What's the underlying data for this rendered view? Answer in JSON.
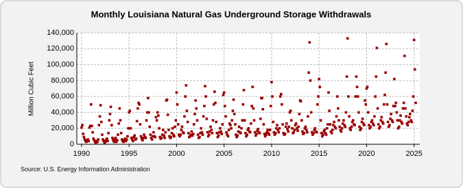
{
  "chart_data": {
    "type": "scatter",
    "title": "Monthly Louisiana Natural  Gas Underground Storage Withdrawals",
    "y_label": "Million Cubic Feet",
    "source": "Source: U.S. Energy Information Administration",
    "color": "#990000",
    "grid": true,
    "xlim": [
      1989.5,
      2025.6
    ],
    "ylim": [
      0,
      140000
    ],
    "xticks": [
      1990,
      1995,
      2000,
      2005,
      2010,
      2015,
      2020,
      2025
    ],
    "yticks": [
      0,
      {
        "value": 20000,
        "label": "20,000"
      },
      {
        "value": 40000,
        "label": "40,000"
      },
      {
        "value": 60000,
        "label": "60,000"
      },
      {
        "value": 80000,
        "label": "80,000"
      },
      {
        "value": 100000,
        "label": "100,000"
      },
      {
        "value": 120000,
        "label": "120,000"
      },
      {
        "value": 140000,
        "label": "140,000"
      }
    ],
    "x": [
      1990,
      1990.08,
      1990.17,
      1990.25,
      1990.33,
      1990.42,
      1990.5,
      1990.58,
      1990.67,
      1990.75,
      1990.83,
      1990.92,
      1991,
      1991.08,
      1991.17,
      1991.25,
      1991.33,
      1991.42,
      1991.5,
      1991.58,
      1991.67,
      1991.75,
      1991.83,
      1991.92,
      1992,
      1992.08,
      1992.17,
      1992.25,
      1992.33,
      1992.42,
      1992.5,
      1992.58,
      1992.67,
      1992.75,
      1992.83,
      1992.92,
      1993,
      1993.08,
      1993.17,
      1993.25,
      1993.33,
      1993.42,
      1993.5,
      1993.58,
      1993.67,
      1993.75,
      1993.83,
      1993.92,
      1994,
      1994.08,
      1994.17,
      1994.25,
      1994.33,
      1994.42,
      1994.5,
      1994.58,
      1994.67,
      1994.75,
      1994.83,
      1994.92,
      1995,
      1995.08,
      1995.17,
      1995.25,
      1995.33,
      1995.42,
      1995.5,
      1995.58,
      1995.67,
      1995.75,
      1995.83,
      1995.92,
      1996,
      1996.08,
      1996.17,
      1996.25,
      1996.33,
      1996.42,
      1996.5,
      1996.58,
      1996.67,
      1996.75,
      1996.83,
      1996.92,
      1997,
      1997.08,
      1997.17,
      1997.25,
      1997.33,
      1997.42,
      1997.5,
      1997.58,
      1997.67,
      1997.75,
      1997.83,
      1997.92,
      1998,
      1998.08,
      1998.17,
      1998.25,
      1998.33,
      1998.42,
      1998.5,
      1998.58,
      1998.67,
      1998.75,
      1998.83,
      1998.92,
      1999,
      1999.08,
      1999.17,
      1999.25,
      1999.33,
      1999.42,
      1999.5,
      1999.58,
      1999.67,
      1999.75,
      1999.83,
      1999.92,
      2000,
      2000.08,
      2000.17,
      2000.25,
      2000.33,
      2000.42,
      2000.5,
      2000.58,
      2000.67,
      2000.75,
      2000.83,
      2000.92,
      2001,
      2001.08,
      2001.17,
      2001.25,
      2001.33,
      2001.42,
      2001.5,
      2001.58,
      2001.67,
      2001.75,
      2001.83,
      2001.92,
      2002,
      2002.08,
      2002.17,
      2002.25,
      2002.33,
      2002.42,
      2002.5,
      2002.58,
      2002.67,
      2002.75,
      2002.83,
      2002.92,
      2003,
      2003.08,
      2003.17,
      2003.25,
      2003.33,
      2003.42,
      2003.5,
      2003.58,
      2003.67,
      2003.75,
      2003.83,
      2003.92,
      2004,
      2004.08,
      2004.17,
      2004.25,
      2004.33,
      2004.42,
      2004.5,
      2004.58,
      2004.67,
      2004.75,
      2004.83,
      2004.92,
      2005,
      2005.08,
      2005.17,
      2005.25,
      2005.33,
      2005.42,
      2005.5,
      2005.58,
      2005.67,
      2005.75,
      2005.83,
      2005.92,
      2006,
      2006.08,
      2006.17,
      2006.25,
      2006.33,
      2006.42,
      2006.5,
      2006.58,
      2006.67,
      2006.75,
      2006.83,
      2006.92,
      2007,
      2007.08,
      2007.17,
      2007.25,
      2007.33,
      2007.42,
      2007.5,
      2007.58,
      2007.67,
      2007.75,
      2007.83,
      2007.92,
      2008,
      2008.08,
      2008.17,
      2008.25,
      2008.33,
      2008.42,
      2008.5,
      2008.58,
      2008.67,
      2008.75,
      2008.83,
      2008.92,
      2009,
      2009.08,
      2009.17,
      2009.25,
      2009.33,
      2009.42,
      2009.5,
      2009.58,
      2009.67,
      2009.75,
      2009.83,
      2009.92,
      2010,
      2010.08,
      2010.17,
      2010.25,
      2010.33,
      2010.42,
      2010.5,
      2010.58,
      2010.67,
      2010.75,
      2010.83,
      2010.92,
      2011,
      2011.08,
      2011.17,
      2011.25,
      2011.33,
      2011.42,
      2011.5,
      2011.58,
      2011.67,
      2011.75,
      2011.83,
      2011.92,
      2012,
      2012.08,
      2012.17,
      2012.25,
      2012.33,
      2012.42,
      2012.5,
      2012.58,
      2012.67,
      2012.75,
      2012.83,
      2012.92,
      2013,
      2013.08,
      2013.17,
      2013.25,
      2013.33,
      2013.42,
      2013.5,
      2013.58,
      2013.67,
      2013.75,
      2013.83,
      2013.92,
      2014,
      2014.08,
      2014.17,
      2014.25,
      2014.33,
      2014.42,
      2014.5,
      2014.58,
      2014.67,
      2014.75,
      2014.83,
      2014.92,
      2015,
      2015.08,
      2015.17,
      2015.25,
      2015.33,
      2015.42,
      2015.5,
      2015.58,
      2015.67,
      2015.75,
      2015.83,
      2015.92,
      2016,
      2016.08,
      2016.17,
      2016.25,
      2016.33,
      2016.42,
      2016.5,
      2016.58,
      2016.67,
      2016.75,
      2016.83,
      2016.92,
      2017,
      2017.08,
      2017.17,
      2017.25,
      2017.33,
      2017.42,
      2017.5,
      2017.58,
      2017.67,
      2017.75,
      2017.83,
      2017.92,
      2018,
      2018.08,
      2018.17,
      2018.25,
      2018.33,
      2018.42,
      2018.5,
      2018.58,
      2018.67,
      2018.75,
      2018.83,
      2018.92,
      2019,
      2019.08,
      2019.17,
      2019.25,
      2019.33,
      2019.42,
      2019.5,
      2019.58,
      2019.67,
      2019.75,
      2019.83,
      2019.92,
      2020,
      2020.08,
      2020.17,
      2020.25,
      2020.33,
      2020.42,
      2020.5,
      2020.58,
      2020.67,
      2020.75,
      2020.83,
      2020.92,
      2021,
      2021.08,
      2021.17,
      2021.25,
      2021.33,
      2021.42,
      2021.5,
      2021.58,
      2021.67,
      2021.75,
      2021.83,
      2021.92,
      2022,
      2022.08,
      2022.17,
      2022.25,
      2022.33,
      2022.42,
      2022.5,
      2022.58,
      2022.67,
      2022.75,
      2022.83,
      2022.92,
      2023,
      2023.08,
      2023.17,
      2023.25,
      2023.33,
      2023.42,
      2023.5,
      2023.58,
      2023.67,
      2023.75,
      2023.83,
      2023.92,
      2024,
      2024.08,
      2024.17,
      2024.25,
      2024.33,
      2024.42,
      2024.5,
      2024.58,
      2024.67,
      2024.75,
      2024.83,
      2024.92,
      2025,
      2025.08,
      2025.17
    ],
    "values": [
      21000,
      24000,
      13000,
      9000,
      6000,
      4000,
      3000,
      5000,
      6000,
      4000,
      21000,
      23000,
      50000,
      23000,
      15000,
      7000,
      5000,
      3000,
      2000,
      4000,
      3000,
      6000,
      24000,
      35000,
      49000,
      28000,
      12000,
      6000,
      4000,
      2000,
      3000,
      5000,
      7000,
      4000,
      14000,
      30000,
      38000,
      47000,
      24000,
      8000,
      5000,
      3000,
      6000,
      8000,
      3000,
      5000,
      12000,
      26000,
      45000,
      30000,
      14000,
      6000,
      4000,
      3000,
      5000,
      7000,
      4000,
      6000,
      10000,
      20000,
      40000,
      42000,
      20000,
      8000,
      6000,
      4000,
      9000,
      11000,
      6000,
      7000,
      29000,
      45000,
      52000,
      50000,
      25000,
      10000,
      7000,
      5000,
      8000,
      12000,
      9000,
      8000,
      30000,
      40000,
      58000,
      40000,
      22000,
      12000,
      8000,
      6000,
      10000,
      15000,
      10000,
      9000,
      34000,
      30000,
      40000,
      36000,
      20000,
      9000,
      7000,
      8000,
      12000,
      18000,
      11000,
      8000,
      15000,
      55000,
      56000,
      37000,
      18000,
      10000,
      8000,
      9000,
      14000,
      20000,
      12000,
      10000,
      22000,
      30000,
      65000,
      50000,
      25000,
      12000,
      10000,
      12000,
      18000,
      22000,
      15000,
      14000,
      35000,
      60000,
      74000,
      42000,
      28000,
      14000,
      9000,
      10000,
      12000,
      16000,
      11000,
      13000,
      25000,
      38000,
      55000,
      45000,
      30000,
      12000,
      8000,
      9000,
      14000,
      20000,
      15000,
      12000,
      35000,
      48000,
      73000,
      60000,
      32000,
      15000,
      10000,
      12000,
      16000,
      22000,
      18000,
      14000,
      30000,
      50000,
      66000,
      52000,
      28000,
      14000,
      9000,
      11000,
      15000,
      20000,
      16000,
      13000,
      25000,
      62000,
      65000,
      48000,
      35000,
      15000,
      12000,
      10000,
      18000,
      26000,
      24000,
      20000,
      30000,
      42000,
      56000,
      38000,
      25000,
      12000,
      9000,
      11000,
      16000,
      22000,
      15000,
      14000,
      20000,
      30000,
      50000,
      68000,
      30000,
      14000,
      10000,
      12000,
      18000,
      20000,
      16000,
      15000,
      26000,
      48000,
      72000,
      45000,
      30000,
      15000,
      11000,
      13000,
      17000,
      19000,
      15000,
      14000,
      32000,
      58000,
      58000,
      44000,
      25000,
      13000,
      10000,
      12000,
      15000,
      18000,
      14000,
      12000,
      18000,
      48000,
      78000,
      60000,
      28000,
      15000,
      12000,
      14000,
      20000,
      24000,
      18000,
      15000,
      20000,
      60000,
      63000,
      50000,
      25000,
      14000,
      12000,
      13000,
      22000,
      26000,
      19000,
      16000,
      22000,
      40000,
      42000,
      30000,
      20000,
      14000,
      15000,
      18000,
      24000,
      26000,
      20000,
      17000,
      22000,
      38000,
      55000,
      54000,
      30000,
      16000,
      13000,
      14000,
      20000,
      22000,
      18000,
      15000,
      35000,
      90000,
      128000,
      80000,
      40000,
      15000,
      12000,
      14000,
      18000,
      20000,
      16000,
      15000,
      50000,
      60000,
      82000,
      72000,
      30000,
      14000,
      10000,
      12000,
      16000,
      18000,
      14000,
      12000,
      20000,
      25000,
      65000,
      42000,
      25000,
      16000,
      14000,
      18000,
      24000,
      28000,
      22000,
      20000,
      35000,
      60000,
      45000,
      30000,
      22000,
      18000,
      16000,
      20000,
      26000,
      30000,
      24000,
      22000,
      40000,
      85000,
      133000,
      60000,
      35000,
      20000,
      18000,
      22000,
      28000,
      30000,
      25000,
      24000,
      60000,
      85000,
      72000,
      60000,
      40000,
      22000,
      18000,
      20000,
      28000,
      32000,
      26000,
      24000,
      55000,
      50000,
      70000,
      72000,
      40000,
      24000,
      20000,
      22000,
      28000,
      30000,
      26000,
      24000,
      35000,
      60000,
      85000,
      121000,
      45000,
      25000,
      20000,
      22000,
      30000,
      34000,
      28000,
      26000,
      50000,
      62000,
      90000,
      126000,
      50000,
      28000,
      22000,
      24000,
      32000,
      38000,
      30000,
      28000,
      48000,
      82000,
      48000,
      52000,
      40000,
      30000,
      20000,
      22000,
      30000,
      36000,
      28000,
      26000,
      45000,
      52000,
      111000,
      45000,
      35000,
      26000,
      24000,
      28000,
      34000,
      38000,
      30000,
      28000,
      42000,
      60000,
      131000,
      94000,
      52000
    ]
  }
}
